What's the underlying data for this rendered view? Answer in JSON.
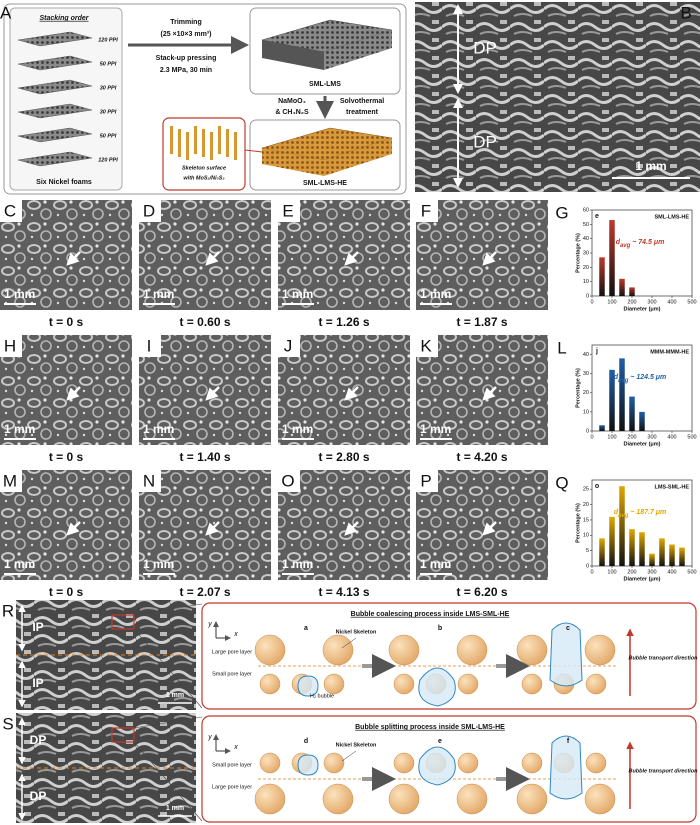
{
  "panel_a": {
    "letter": "A",
    "stacking_title": "Stacking order",
    "foams": [
      "120 PPI",
      "50 PPI",
      "30 PPI",
      "30 PPI",
      "50 PPI",
      "120 PPI"
    ],
    "foams_caption": "Six Nickel foams",
    "trimming": "Trimming",
    "trimming_size": "(25 ×10×3 mm³)",
    "pressing": "Stack-up pressing",
    "pressing_params": "2.3 MPa, 30 min",
    "product1": "SML-LMS",
    "reagents": [
      "NaMoO₄",
      "& CH₄N₂S"
    ],
    "treatment": [
      "Solvothermal",
      "treatment"
    ],
    "inset": [
      "Skeleton surface",
      "with MoS₂/Ni₃S₂"
    ],
    "product2": "SML-LMS-HE"
  },
  "panel_b": {
    "letter": "B",
    "labels": [
      "DP",
      "DP"
    ],
    "scale": "1 mm"
  },
  "sequences": [
    {
      "letters": [
        "C",
        "D",
        "E",
        "F"
      ],
      "times": [
        "t = 0 s",
        "t = 0.60 s",
        "t = 1.26 s",
        "t = 1.87 s"
      ],
      "scale": "1 mm"
    },
    {
      "letters": [
        "H",
        "I",
        "J",
        "K"
      ],
      "times": [
        "t = 0 s",
        "t = 1.40 s",
        "t = 2.80 s",
        "t = 4.20 s"
      ],
      "scale": "1 mm"
    },
    {
      "letters": [
        "M",
        "N",
        "O",
        "P"
      ],
      "times": [
        "t = 0 s",
        "t = 2.07 s",
        "t = 4.13 s",
        "t = 6.20 s"
      ],
      "scale": "1 mm"
    }
  ],
  "histograms": [
    {
      "type": "bar",
      "letter": "G",
      "subletter": "e",
      "title": "SML-LMS-HE",
      "x": [
        50,
        100,
        150,
        200
      ],
      "values": [
        27,
        53,
        12,
        6
      ],
      "color": "#c0392b",
      "xlim": [
        0,
        500
      ],
      "xticks": [
        0,
        100,
        200,
        300,
        400,
        500
      ],
      "ylim": [
        0,
        60
      ],
      "yticks": [
        0,
        10,
        20,
        30,
        40,
        50,
        60
      ],
      "xlabel": "Diameter (μm)",
      "ylabel": "Percentage (%)",
      "avg": {
        "symbol": "d",
        "subscript": "avg",
        "text": " ~ 74.5 μm"
      }
    },
    {
      "type": "bar",
      "letter": "L",
      "subletter": "j",
      "title": "MMM-MMM-HE",
      "x": [
        50,
        100,
        150,
        200,
        250
      ],
      "values": [
        3,
        32,
        38,
        18,
        10
      ],
      "color": "#1f5fa8",
      "xlim": [
        0,
        500
      ],
      "xticks": [
        0,
        100,
        200,
        300,
        400,
        500
      ],
      "ylim": [
        0,
        45
      ],
      "yticks": [
        0,
        10,
        20,
        30,
        40
      ],
      "xlabel": "Diameter (μm)",
      "ylabel": "Percentage (%)",
      "avg": {
        "symbol": "d",
        "subscript": "avg",
        "text": " ~ 124.5 μm"
      }
    },
    {
      "type": "bar",
      "letter": "Q",
      "subletter": "o",
      "title": "LMS-SML-HE",
      "x": [
        50,
        100,
        150,
        200,
        250,
        300,
        350,
        400,
        450
      ],
      "values": [
        9,
        16,
        26,
        12,
        11,
        4,
        9,
        7,
        6
      ],
      "color": "#e0a800",
      "xlim": [
        0,
        500
      ],
      "xticks": [
        0,
        100,
        200,
        300,
        400,
        500
      ],
      "ylim": [
        0,
        28
      ],
      "yticks": [
        0,
        5,
        10,
        15,
        20,
        25
      ],
      "xlabel": "Diameter (μm)",
      "ylabel": "Percentage (%)",
      "avg": {
        "symbol": "d",
        "subscript": "avg",
        "text": " ~ 187.7 μm"
      }
    }
  ],
  "panel_r": {
    "letter": "R",
    "sem_labels": [
      "IP",
      "IP"
    ],
    "scale": "1 mm",
    "title": "Bubble coalescing process inside LMS-SML-HE",
    "steps": [
      "a",
      "b",
      "c"
    ],
    "axes": [
      "y",
      "x"
    ],
    "layers": [
      "Large pore layer",
      "Small pore layer"
    ],
    "skeleton": "Nickel Skeleton",
    "bubble": "H₂ bubble",
    "direction": "Bubble transport direction"
  },
  "panel_s": {
    "letter": "S",
    "sem_labels": [
      "DP",
      "DP"
    ],
    "scale": "1 mm",
    "title": "Bubble splitting process inside SML-LMS-HE",
    "steps": [
      "d",
      "e",
      "f"
    ],
    "axes": [
      "y",
      "x"
    ],
    "layers": [
      "Small pore layer",
      "Large pore layer"
    ],
    "skeleton": "Nickel Skeleton",
    "direction": "Bubble transport direction"
  }
}
